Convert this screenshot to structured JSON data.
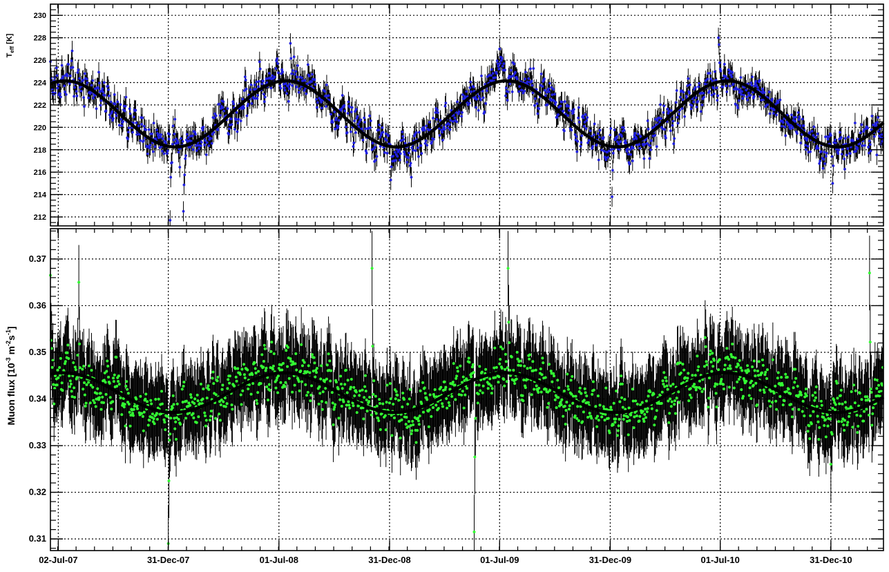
{
  "colors": {
    "temperature_points": "#1f1fe0",
    "flux_points": "#33ff33",
    "fit_curve": "#000000",
    "error_bars": "#000000",
    "grid": "#000000"
  },
  "chart_data": [
    {
      "type": "scatter",
      "panel": "top",
      "ylabel": {
        "main": "T",
        "sub": "eff",
        "unit": " [K]"
      },
      "x_axis": "date",
      "xlim": [
        "2007-06-19",
        "2011-03-28"
      ],
      "ylim": [
        211.2,
        231
      ],
      "y_ticks": [
        212,
        214,
        216,
        218,
        220,
        222,
        224,
        226,
        228,
        230
      ],
      "grid": true,
      "series": [
        {
          "role": "data points with error bars",
          "x_start": "2007-06-19",
          "x_step_days": 1,
          "count": 1378,
          "seasonal_mean": {
            "mean": 221.2,
            "amplitude": 2.9,
            "peak_date": "2007-07-13",
            "period_days": 365.25
          },
          "noise_sd": 1.35,
          "error_bar": 0.9,
          "sample_values": [
            {
              "x": "2007-07-02",
              "y": 223.8
            },
            {
              "x": "2007-08-15",
              "y": 224.8
            },
            {
              "x": "2008-01-03",
              "y": 211.7
            },
            {
              "x": "2008-01-25",
              "y": 212.5
            },
            {
              "x": "2008-07-20",
              "y": 227.5
            },
            {
              "x": "2009-01-02",
              "y": 215.3
            },
            {
              "x": "2009-07-01",
              "y": 227.0
            },
            {
              "x": "2010-01-03",
              "y": 213.8
            },
            {
              "x": "2010-06-28",
              "y": 228.0
            },
            {
              "x": "2011-01-03",
              "y": 215.0
            }
          ]
        },
        {
          "role": "sinusoidal fit",
          "function": "sine",
          "mean": 221.2,
          "amplitude": 2.95,
          "peak_date": "2007-07-13",
          "period_days": 365.25
        }
      ]
    },
    {
      "type": "scatter",
      "panel": "bottom",
      "ylabel": {
        "main": "Muon flux [10",
        "exp1": "-3",
        "mid": " m",
        "exp2": "-2",
        "mid2": "s",
        "exp3": "-1",
        "end": "]"
      },
      "x_axis": "date",
      "xlim": [
        "2007-06-19",
        "2011-03-28"
      ],
      "ylim": [
        0.3075,
        0.3765
      ],
      "y_ticks": [
        0.31,
        0.32,
        0.33,
        0.34,
        0.35,
        0.36,
        0.37
      ],
      "x_tick_labels": [
        "02-Jul-07",
        "31-Dec-07",
        "01-Jul-08",
        "31-Dec-08",
        "01-Jul-09",
        "31-Dec-09",
        "01-Jul-10",
        "31-Dec-10"
      ],
      "x_tick_dates": [
        "2007-07-02",
        "2007-12-31",
        "2008-07-01",
        "2008-12-31",
        "2009-07-01",
        "2009-12-31",
        "2010-07-01",
        "2010-12-31"
      ],
      "grid": true,
      "series": [
        {
          "role": "data points with error bars",
          "x_start": "2007-06-19",
          "x_step_days": 1,
          "count": 1378,
          "seasonal_mean": {
            "mean": 0.3413,
            "amplitude": 0.0043,
            "peak_date": "2007-07-10",
            "period_days": 365.25
          },
          "noise_sd": 0.0045,
          "error_bar": 0.008,
          "sample_values": [
            {
              "x": "2007-06-19",
              "y": 0.3665
            },
            {
              "x": "2007-08-05",
              "y": 0.365
            },
            {
              "x": "2007-12-31",
              "y": 0.309
            },
            {
              "x": "2008-12-02",
              "y": 0.368
            },
            {
              "x": "2009-05-20",
              "y": 0.3115
            },
            {
              "x": "2009-07-15",
              "y": 0.368
            },
            {
              "x": "2010-12-31",
              "y": 0.326
            },
            {
              "x": "2011-03-05",
              "y": 0.367
            },
            {
              "x": "2011-03-28",
              "y": 0.367
            }
          ]
        },
        {
          "role": "sinusoidal fit",
          "function": "sine",
          "mean": 0.34135,
          "amplitude": 0.00425,
          "peak_date": "2007-07-10",
          "period_days": 365.25
        }
      ]
    }
  ]
}
